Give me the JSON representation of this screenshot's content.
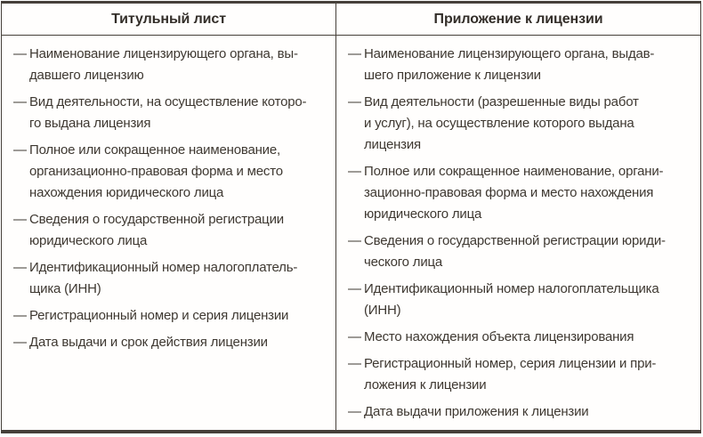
{
  "colors": {
    "border": "#46403a",
    "text": "#3e3831",
    "header_text": "#332e29",
    "background": "#fffefd"
  },
  "table": {
    "bullet": "—",
    "columns": [
      {
        "header": "Титульный лист",
        "items": [
          {
            "text": "Наименование лицензирующего органа, вы-\nдавшего лицензию"
          },
          {
            "text": "Вид деятельности, на осуществление которо-\nго выдана лицензия"
          },
          {
            "text": "Полное или сокращенное наименование,\nорганизационно-правовая форма и место\nнахождения юридического лица"
          },
          {
            "text": "Сведения о государственной регистрации\nюридического лица"
          },
          {
            "text": "Идентификационный номер налогоплатель-\nщика (ИНН)"
          },
          {
            "text": "Регистрационный номер и серия лицензии"
          },
          {
            "text": "Дата выдачи и срок действия лицензии"
          }
        ]
      },
      {
        "header": "Приложение к лицензии",
        "items": [
          {
            "text": "Наименование лицензирующего органа, выдав-\nшего приложение к лицензии"
          },
          {
            "text": "Вид деятельности (разрешенные виды работ\nи услуг), на осуществление которого выдана\nлицензия"
          },
          {
            "text": "Полное или сокращенное наименование, органи-\nзационно-правовая форма и место нахождения\nюридического лица"
          },
          {
            "text": "Сведения о государственной регистрации юриди-\nческого лица"
          },
          {
            "text": "Идентификационный номер налогоплательщика\n(ИНН)"
          },
          {
            "text": "Место нахождения объекта лицензирования"
          },
          {
            "text": "Регистрационный номер, серия лицензии и при-\nложения к лицензии"
          },
          {
            "text": "Дата выдачи приложения к лицензии"
          }
        ]
      }
    ]
  }
}
